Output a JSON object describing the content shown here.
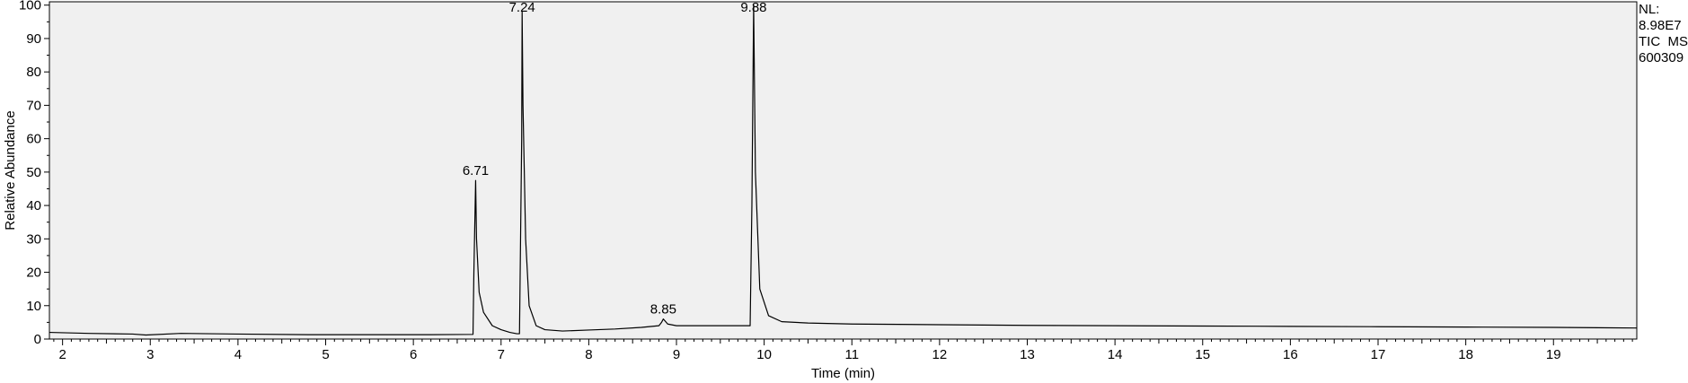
{
  "chart_data": {
    "type": "line",
    "xlabel": "Time (min)",
    "ylabel": "Relative Abundance",
    "xlim": [
      1.85,
      19.95
    ],
    "ylim": [
      0,
      101
    ],
    "x_ticks": [
      2,
      3,
      4,
      5,
      6,
      7,
      8,
      9,
      10,
      11,
      12,
      13,
      14,
      15,
      16,
      17,
      18,
      19
    ],
    "y_ticks": [
      0,
      10,
      20,
      30,
      40,
      50,
      60,
      70,
      80,
      90,
      100
    ],
    "grid": false,
    "info": {
      "nl_label": "NL:",
      "nl_value": "8.98E7",
      "scan": "TIC  MS",
      "sample": "600309"
    },
    "peaks": [
      {
        "label": "6.71",
        "x": 6.71,
        "y": 47.5
      },
      {
        "label": "7.24",
        "x": 7.24,
        "y": 98.0
      },
      {
        "label": "8.85",
        "x": 8.85,
        "y": 6.0
      },
      {
        "label": "9.88",
        "x": 9.88,
        "y": 100.0
      }
    ],
    "series": [
      {
        "x": [
          1.85,
          2.3,
          2.8,
          2.95,
          3.35,
          4.0,
          4.8,
          5.5,
          6.2,
          6.68,
          6.69,
          6.71,
          6.72,
          6.75,
          6.8,
          6.9,
          7.0,
          7.1,
          7.18,
          7.21,
          7.235,
          7.24,
          7.25,
          7.28,
          7.32,
          7.4,
          7.5,
          7.7,
          8.0,
          8.3,
          8.6,
          8.8,
          8.83,
          8.85,
          8.9,
          9.0,
          9.4,
          9.84,
          9.86,
          9.88,
          9.9,
          9.95,
          10.05,
          10.2,
          10.5,
          11.0,
          12.0,
          13.0,
          14.0,
          15.0,
          16.0,
          17.0,
          18.0,
          19.0,
          19.95
        ],
        "y": [
          2.0,
          1.7,
          1.5,
          1.2,
          1.7,
          1.5,
          1.3,
          1.3,
          1.3,
          1.4,
          20.0,
          47.5,
          30.0,
          14.0,
          8.0,
          4.0,
          2.8,
          2.0,
          1.6,
          1.6,
          60.0,
          98.0,
          70.0,
          30.0,
          10.0,
          4.0,
          2.8,
          2.4,
          2.7,
          3.0,
          3.5,
          4.0,
          5.0,
          6.0,
          4.5,
          4.0,
          4.0,
          4.0,
          40.0,
          100.0,
          50.0,
          15.0,
          7.0,
          5.2,
          4.8,
          4.5,
          4.3,
          4.1,
          4.0,
          3.9,
          3.8,
          3.7,
          3.6,
          3.5,
          3.3
        ]
      }
    ]
  }
}
